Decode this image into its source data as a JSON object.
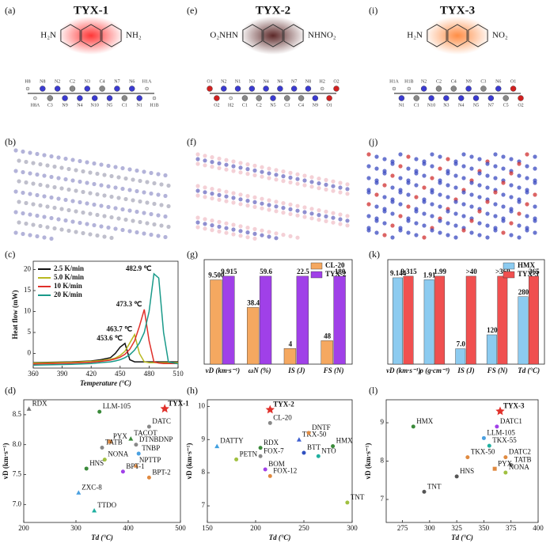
{
  "panel_labels": [
    "(a)",
    "(e)",
    "(i)",
    "(b)",
    "(f)",
    "(j)",
    "(c)",
    "(g)",
    "(k)",
    "(d)",
    "(h)",
    "(l)"
  ],
  "molecules": [
    {
      "name": "TYX-1",
      "color": "#e0302a",
      "left": "H₂N",
      "right": "NH₂",
      "right_color": "#e0302a",
      "left_color": "#e0302a",
      "atoms": [
        "H8",
        "H8A",
        "N8",
        "C3",
        "N2",
        "N9",
        "C2",
        "N4",
        "N3",
        "N10",
        "C4",
        "N5",
        "N7",
        "C1",
        "N6",
        "N1",
        "H1A",
        "H1B"
      ]
    },
    {
      "name": "TYX-2",
      "color": "#6b2a2a",
      "left": "O₂NHN",
      "right": "NHNO₂",
      "right_color": "#6b2a2a",
      "left_color": "#6b2a2a",
      "atoms": [
        "O1",
        "O2",
        "N2",
        "H2",
        "N1",
        "C1",
        "N3",
        "C2",
        "N4",
        "N5",
        "N6",
        "C3",
        "N7",
        "C4",
        "N8",
        "N9",
        "H2",
        "O1",
        "O2"
      ]
    },
    {
      "name": "TYX-3",
      "color": "#e08a40",
      "left": "H₂N",
      "right": "NO₂",
      "right_color": "#e0302a",
      "left_color": "#e08a40",
      "atoms": [
        "H1A",
        "N1",
        "H1B",
        "C1",
        "N2",
        "N10",
        "C2",
        "N3",
        "C4",
        "N4",
        "N9",
        "N5",
        "C3",
        "N7",
        "N6",
        "C5",
        "O1",
        "O2"
      ]
    }
  ],
  "chart_data": [
    {
      "type": "line",
      "xlabel": "Temperature (°C)",
      "ylabel": "Heat flow (mW)",
      "x": [
        360,
        380,
        400,
        420,
        430,
        440,
        445,
        450,
        455,
        460,
        465,
        470,
        475,
        480,
        485,
        490,
        495,
        500,
        510
      ],
      "series": [
        {
          "name": "2.5 K/min",
          "color": "#111111",
          "values": [
            -2.2,
            -2.1,
            -2,
            -1.8,
            -1.5,
            -1,
            0,
            1.5,
            2.4,
            -1.5,
            -2,
            -2,
            -2,
            -2,
            -2,
            -2,
            -2,
            -2,
            -2
          ]
        },
        {
          "name": "5.0 K/min",
          "color": "#b8b820",
          "values": [
            -2.3,
            -2.2,
            -2.1,
            -1.9,
            -1.7,
            -1.4,
            -1.1,
            -0.5,
            0.5,
            2.5,
            4.5,
            0,
            -2,
            -2.2,
            -2.2,
            -2.2,
            -2.2,
            -2.2,
            -2.2
          ]
        },
        {
          "name": "10 K/min",
          "color": "#e0302a",
          "values": [
            -2.5,
            -2.4,
            -2.3,
            -2.1,
            -1.9,
            -1.6,
            -1.3,
            -0.9,
            -0.2,
            1,
            3,
            6.5,
            10.5,
            3,
            -2,
            -2.3,
            -2.4,
            -2.4,
            -2.4
          ]
        },
        {
          "name": "20 K/min",
          "color": "#1a9a8a",
          "values": [
            -2.8,
            -2.7,
            -2.6,
            -2.4,
            -2.2,
            -2,
            -1.8,
            -1.5,
            -1,
            -0.3,
            0.8,
            2.5,
            5,
            10,
            19,
            18,
            5,
            -2,
            -2.5
          ]
        }
      ],
      "annotations": [
        "453.6 ℃",
        "463.7 ℃",
        "473.3 ℃",
        "482.9 ℃"
      ],
      "xlim": [
        360,
        510
      ],
      "xticks": [
        360,
        390,
        420,
        450,
        480,
        510
      ],
      "ylim": [
        -3.5,
        22
      ],
      "yticks": [
        0,
        5,
        10,
        15,
        20
      ],
      "legend": "upper left"
    },
    {
      "type": "bar",
      "categories": [
        "vD (km·s⁻¹)",
        "ωN (%)",
        "IS (J)",
        "FS (N)"
      ],
      "series": [
        {
          "name": "CL-20",
          "color": "#f5a860",
          "label_color": "#111111",
          "values": [
            9.5,
            38.4,
            4,
            48
          ],
          "value_labels": [
            "9.500",
            "38.4",
            "4",
            "48"
          ]
        },
        {
          "name": "TYX-2",
          "color": "#a040e8",
          "label_color": "#e0302a",
          "values": [
            9.915,
            59.6,
            22.5,
            180
          ],
          "value_labels": [
            "9.915",
            "59.6",
            "22.5",
            "180"
          ]
        }
      ],
      "legend": "upper right"
    },
    {
      "type": "bar",
      "categories": [
        "vD (km·s⁻¹)",
        "ρ (g·cm⁻³)",
        "IS (J)",
        "FS (N)",
        "Td (°C)"
      ],
      "series": [
        {
          "name": "HMX",
          "color": "#8ccbf0",
          "label_color": "#111111",
          "values": [
            9.144,
            1.91,
            7.0,
            120,
            280
          ],
          "value_labels": [
            "9.144",
            "1.91",
            "7.0",
            "120",
            "280"
          ]
        },
        {
          "name": "TYX-3",
          "color": "#f05050",
          "label_color": "#e0302a",
          "values": [
            9.315,
            1.99,
            40,
            360,
            365
          ],
          "value_labels": [
            "9.315",
            "1.99",
            ">40",
            ">360",
            "365"
          ]
        }
      ],
      "legend": "upper right"
    },
    {
      "type": "scatter",
      "xlabel": "Td (°C)",
      "ylabel": "vD (km·s⁻¹)",
      "labels": [
        "RDX",
        "LLM-105",
        "TYX-1",
        "DATC",
        "TACOT",
        "DTNBDNP",
        "PYX",
        "TATB",
        "TNBP",
        "NONA",
        "NPTTP",
        "HNS",
        "BPT-1",
        "BPT-2",
        "ZXC-8",
        "TTDO"
      ],
      "x": [
        210,
        345,
        470,
        440,
        405,
        415,
        365,
        350,
        420,
        355,
        415,
        320,
        390,
        440,
        305,
        335
      ],
      "values": [
        8.6,
        8.55,
        8.6,
        8.3,
        8.1,
        8.0,
        8.05,
        7.95,
        7.85,
        7.75,
        7.65,
        7.6,
        7.55,
        7.45,
        7.2,
        6.9
      ],
      "markers": [
        "^",
        "o",
        "*",
        "o",
        "^",
        "o",
        "s",
        "o",
        "o",
        "o",
        "^",
        "o",
        "o",
        "o",
        "^",
        "^"
      ],
      "colors": [
        "#777777",
        "#3a8a3a",
        "#e0302a",
        "#888888",
        "#3a8a3a",
        "#888888",
        "#e08a40",
        "#888888",
        "#4aa0e0",
        "#a0c040",
        "#e08a40",
        "#3a8a3a",
        "#a040e8",
        "#e08a40",
        "#4aa0e0",
        "#20b0a0"
      ],
      "xlim": [
        200,
        500
      ],
      "xticks": [
        200,
        300,
        400,
        500
      ],
      "ylim": [
        6.7,
        8.75
      ],
      "yticks": [
        {
          "value": 7.0,
          "label": "7.0"
        },
        7.5,
        {
          "value": 8.0,
          "label": "8.0"
        },
        8.5
      ]
    },
    {
      "type": "scatter",
      "xlabel": "Td (°C)",
      "ylabel": "vD (km·s⁻¹)",
      "labels": [
        "TYX-2",
        "CL-20",
        "DATTY",
        "PETN",
        "RDX",
        "FOX-7",
        "BOM",
        "FOX-12",
        "TKX-50",
        "BTT",
        "DNTF",
        "HMX",
        "NTO",
        "TNT"
      ],
      "x": [
        215,
        215,
        160,
        180,
        205,
        205,
        210,
        215,
        245,
        250,
        255,
        280,
        265,
        295
      ],
      "values": [
        9.9,
        9.5,
        8.8,
        8.4,
        8.75,
        8.5,
        8.1,
        7.9,
        9.0,
        8.6,
        9.2,
        8.8,
        8.5,
        7.1
      ],
      "markers": [
        "*",
        "o",
        "^",
        "o",
        "o",
        "o",
        "o",
        "o",
        "^",
        "o",
        "o",
        "o",
        "o",
        "o"
      ],
      "colors": [
        "#e0302a",
        "#888888",
        "#40a0e0",
        "#a0c040",
        "#3a8a3a",
        "#888888",
        "#a040e8",
        "#e08a40",
        "#4060d0",
        "#3050c0",
        "#e08a40",
        "#3a8a3a",
        "#20b0a0",
        "#a0c040"
      ],
      "xlim": [
        150,
        300
      ],
      "xticks": [
        150,
        200,
        250,
        300
      ],
      "ylim": [
        6.5,
        10.2
      ],
      "yticks": [
        7,
        8,
        9,
        10
      ]
    },
    {
      "type": "scatter",
      "xlabel": "Td (°C)",
      "ylabel": "vD (km·s⁻¹)",
      "labels": [
        "TYX-3",
        "DATC1",
        "HMX",
        "LLM-105",
        "TKX-55",
        "TKX-50",
        "DATC2",
        "TATB",
        "PYX",
        "NONA",
        "HNS",
        "TNT"
      ],
      "x": [
        365,
        362,
        285,
        350,
        355,
        335,
        370,
        375,
        360,
        370,
        325,
        295
      ],
      "values": [
        9.3,
        8.9,
        8.9,
        8.6,
        8.4,
        8.1,
        8.1,
        7.9,
        7.8,
        7.7,
        7.6,
        7.2
      ],
      "markers": [
        "*",
        "o",
        "o",
        "o",
        "o",
        "o",
        "o",
        "o",
        "s",
        "o",
        "o",
        "o"
      ],
      "colors": [
        "#e0302a",
        "#a040e8",
        "#3a8a3a",
        "#4aa0e0",
        "#20b0a0",
        "#e08a40",
        "#e08a40",
        "#888888",
        "#e08a40",
        "#a0c040",
        "#555555",
        "#555555"
      ],
      "xlim": [
        260,
        400
      ],
      "xticks": [
        275,
        300,
        325,
        350,
        375,
        400
      ],
      "ylim": [
        6.4,
        9.6
      ],
      "yticks": [
        7,
        8,
        9
      ]
    }
  ]
}
